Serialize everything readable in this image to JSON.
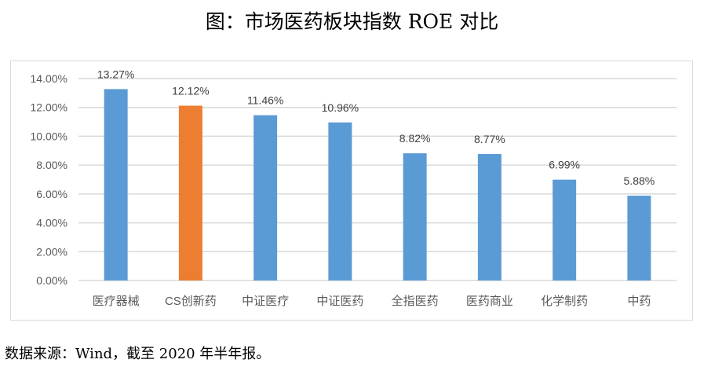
{
  "chart_data": {
    "type": "bar",
    "title": "图：市场医药板块指数 ROE 对比",
    "categories": [
      "医疗器械",
      "CS创新药",
      "中证医疗",
      "中证医药",
      "全指医药",
      "医药商业",
      "化学制药",
      "中药"
    ],
    "values": [
      13.27,
      12.12,
      11.46,
      10.96,
      8.82,
      8.77,
      6.99,
      5.88
    ],
    "data_labels": [
      "13.27%",
      "12.12%",
      "11.46%",
      "10.96%",
      "8.82%",
      "8.77%",
      "6.99%",
      "5.88%"
    ],
    "colors": [
      "#5b9bd5",
      "#ed7d31",
      "#5b9bd5",
      "#5b9bd5",
      "#5b9bd5",
      "#5b9bd5",
      "#5b9bd5",
      "#5b9bd5"
    ],
    "ylim": [
      0,
      14
    ],
    "yticks": [
      0,
      2,
      4,
      6,
      8,
      10,
      12,
      14
    ],
    "ytick_labels": [
      "0.00%",
      "2.00%",
      "4.00%",
      "6.00%",
      "8.00%",
      "10.00%",
      "12.00%",
      "14.00%"
    ],
    "xlabel": "",
    "ylabel": "",
    "grid": true,
    "legend": "none"
  },
  "footer": "数据来源：Wind，截至 2020 年半年报。"
}
